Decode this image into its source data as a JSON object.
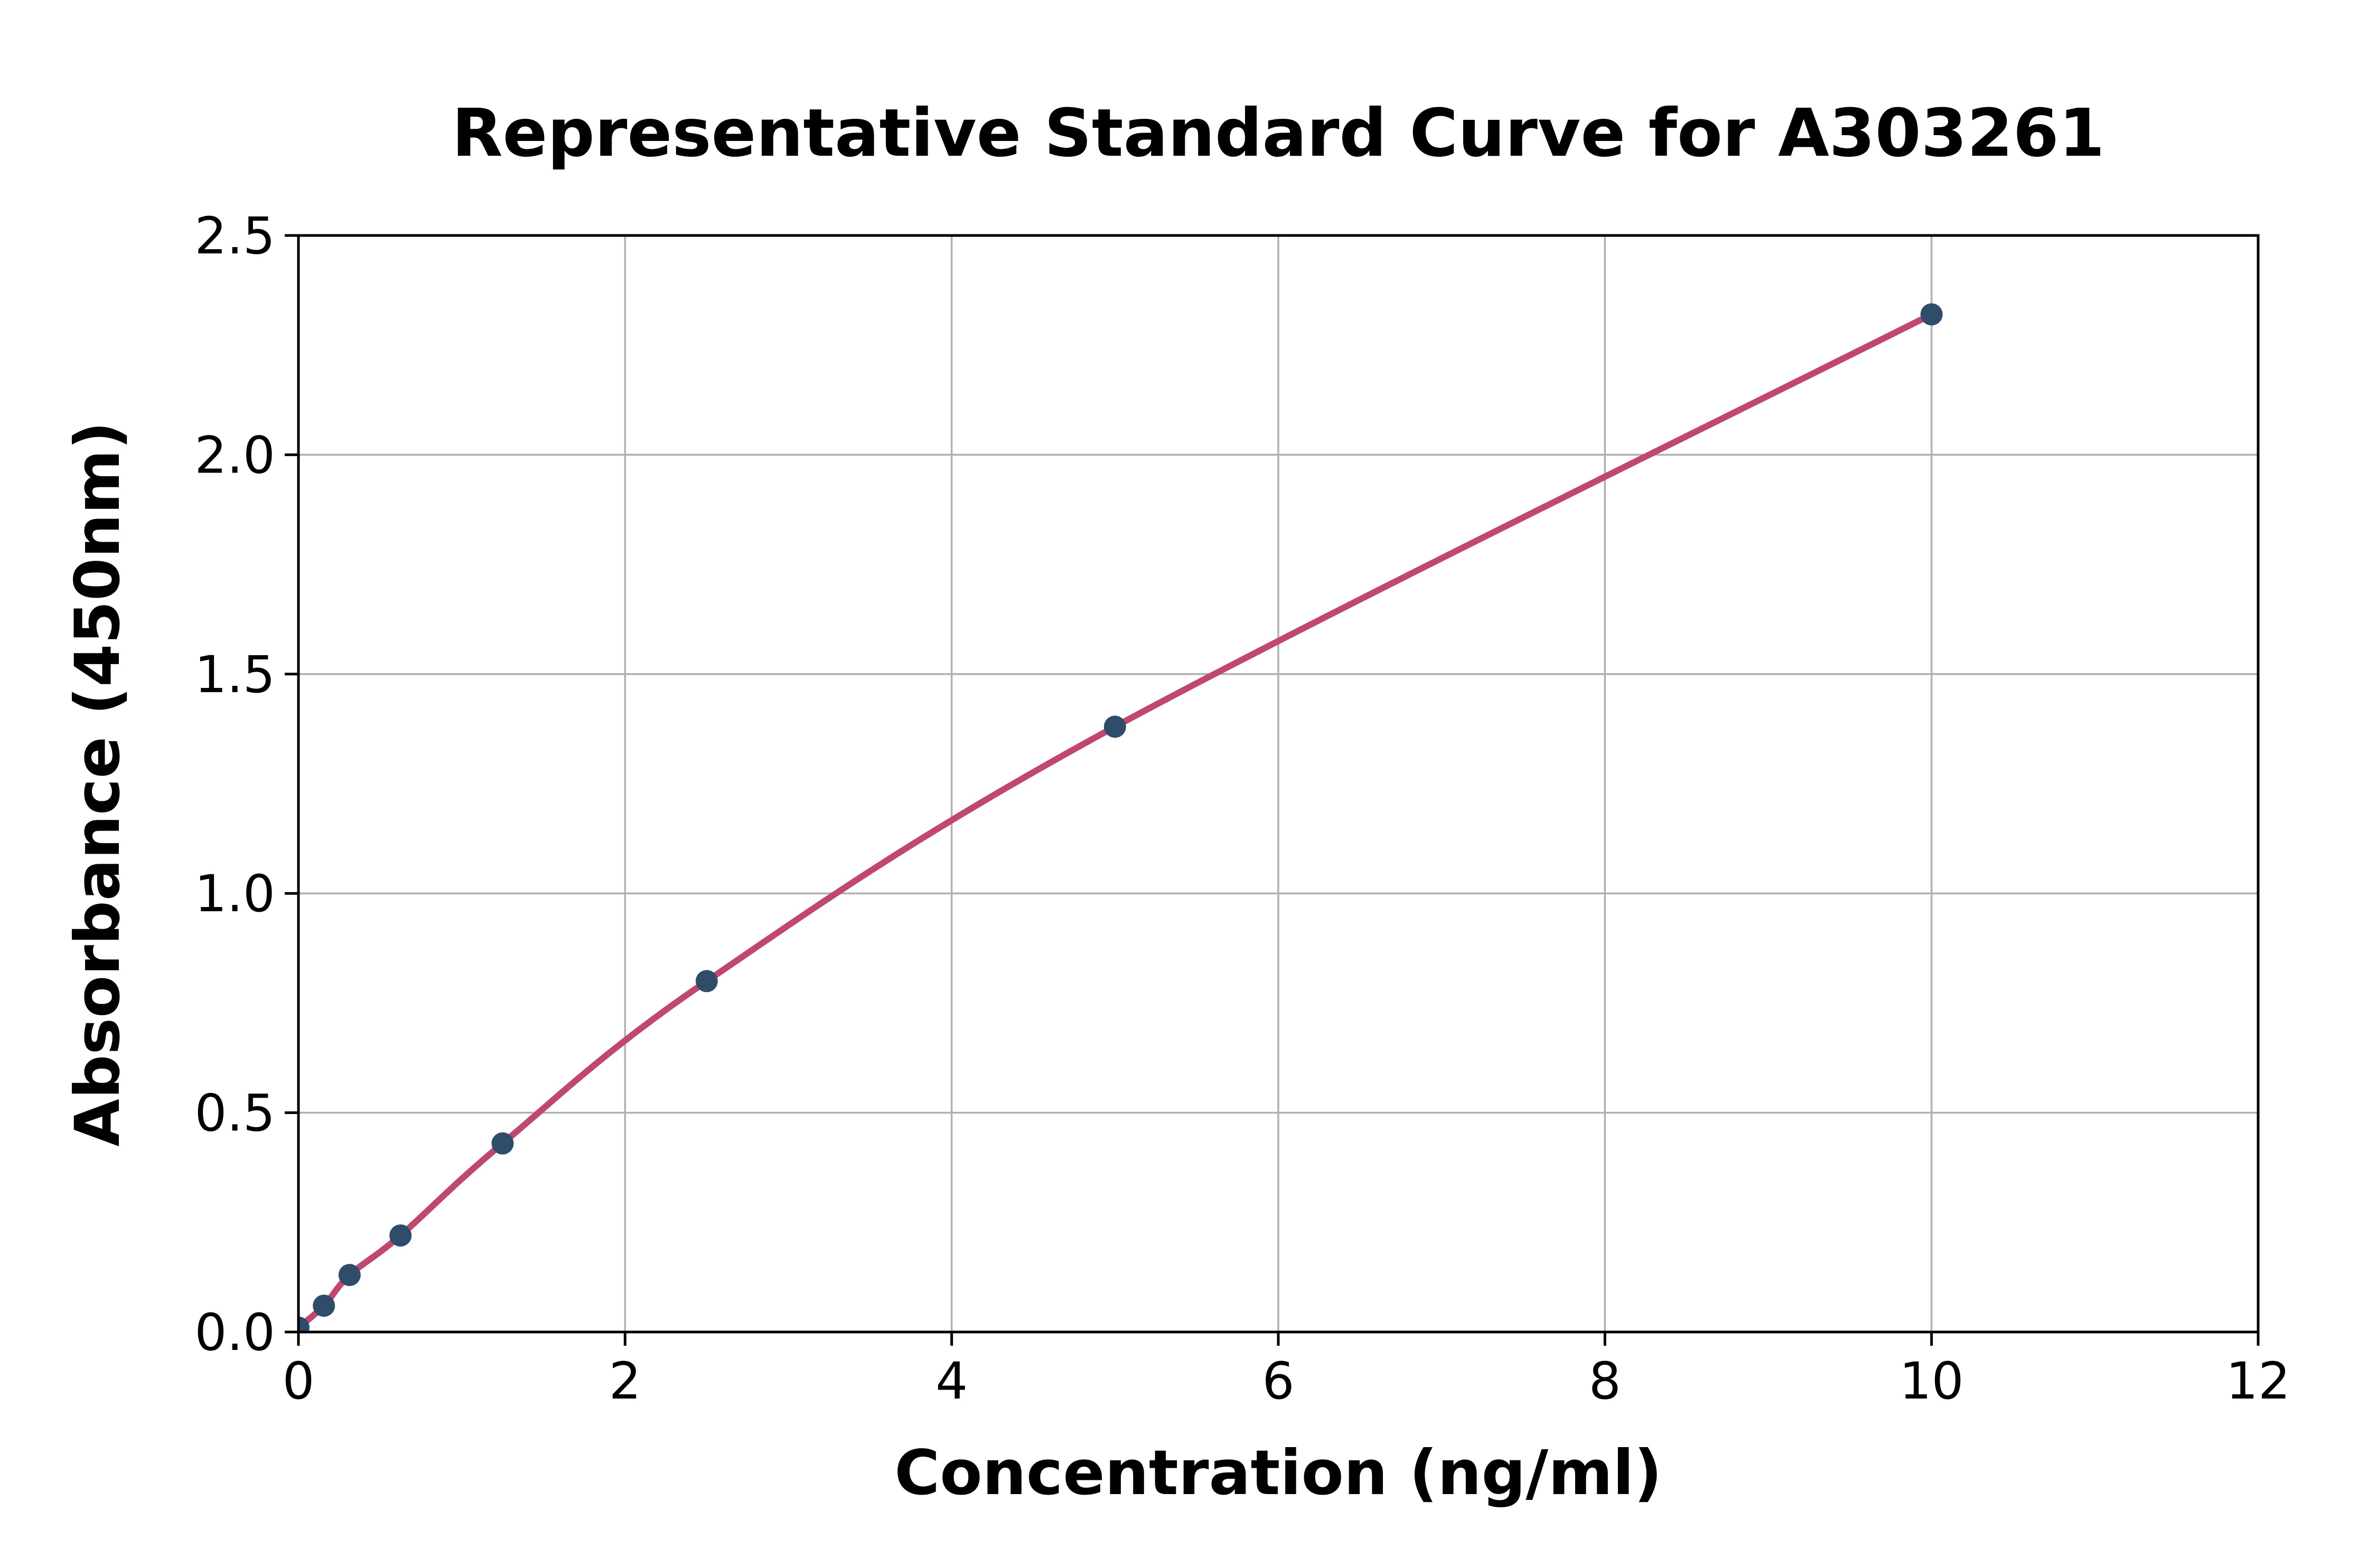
{
  "chart_data": {
    "type": "scatter",
    "title": "Representative Standard Curve for A303261",
    "xlabel": "Concentration (ng/ml)",
    "ylabel": "Absorbance (450nm)",
    "x": [
      0,
      0.156,
      0.313,
      0.625,
      1.25,
      2.5,
      5,
      10
    ],
    "y": [
      0.01,
      0.06,
      0.13,
      0.22,
      0.43,
      0.8,
      1.38,
      2.32
    ],
    "xlim": [
      0,
      12
    ],
    "ylim": [
      0,
      2.5
    ],
    "x_ticks": [
      0,
      2,
      4,
      6,
      8,
      10,
      12
    ],
    "x_tick_labels": [
      "0",
      "2",
      "4",
      "6",
      "8",
      "10",
      "12"
    ],
    "y_ticks": [
      0,
      0.5,
      1.0,
      1.5,
      2.0,
      2.5
    ],
    "y_tick_labels": [
      "0.0",
      "0.5",
      "1.0",
      "1.5",
      "2.0",
      "2.5"
    ],
    "grid": true,
    "legend_position": "none",
    "curve_style": "smooth-fit-through-points",
    "colors": {
      "line": "#c0486e",
      "marker": "#2f4d6b",
      "grid": "#b0b0b0",
      "spine": "#000000",
      "text": "#000000",
      "background": "#ffffff"
    }
  }
}
